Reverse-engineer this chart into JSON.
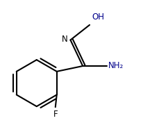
{
  "background_color": "#ffffff",
  "line_color": "#000000",
  "text_color": "#000000",
  "nh2_color": "#00008b",
  "oh_color": "#00008b",
  "line_width": 1.5,
  "fig_width": 2.06,
  "fig_height": 1.9,
  "dpi": 100,
  "F_label": "F",
  "N_label": "N",
  "OH_label": "OH",
  "NH2_label": "NH₂",
  "font_size": 8.5
}
